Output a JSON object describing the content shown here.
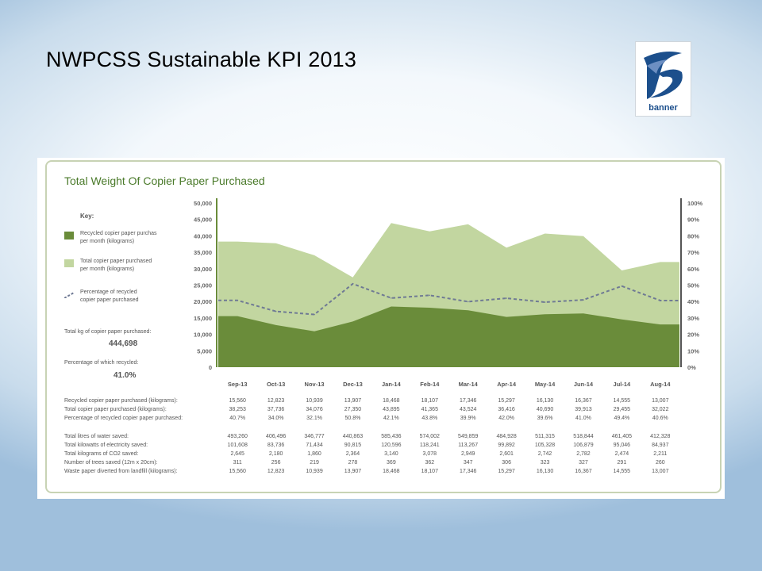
{
  "slide": {
    "title": "NWPCSS Sustainable KPI 2013"
  },
  "logo": {
    "text": "banner",
    "colors": {
      "primary": "#1c4f8c",
      "light": "#6d8fc2"
    }
  },
  "chart_data": {
    "type": "area",
    "title": "Total Weight Of Copier Paper Purchased",
    "categories": [
      "Sep-13",
      "Oct-13",
      "Nov-13",
      "Dec-13",
      "Jan-14",
      "Feb-14",
      "Mar-14",
      "Apr-14",
      "May-14",
      "Jun-14",
      "Jul-14",
      "Aug-14"
    ],
    "y_ticks_left": [
      "50,000",
      "45,000",
      "40,000",
      "35,000",
      "30,000",
      "25,000",
      "20,000",
      "15,000",
      "10,000",
      "5,000",
      "0"
    ],
    "y_ticks_right": [
      "100%",
      "90%",
      "80%",
      "70%",
      "60%",
      "50%",
      "40%",
      "30%",
      "20%",
      "10%",
      "0%"
    ],
    "ylim_left": [
      0,
      50000
    ],
    "ylim_right": [
      0,
      100
    ],
    "series": [
      {
        "name": "Recycled copier paper purchas per month (kilograms)",
        "type": "area",
        "color": "#6a8c3a",
        "values": [
          15560,
          12823,
          10939,
          13907,
          18468,
          18107,
          17346,
          15297,
          16130,
          16367,
          14555,
          13007
        ]
      },
      {
        "name": "Total copier paper purchased per month (kilograms)",
        "type": "area",
        "color": "#c2d6a0",
        "values": [
          38253,
          37736,
          34076,
          27350,
          43895,
          41365,
          43524,
          36416,
          40690,
          39913,
          29455,
          32022
        ]
      },
      {
        "name": "Percentage of recycled copier paper purchased",
        "type": "line",
        "axis": "right",
        "color": "#6f7a94",
        "values": [
          40.7,
          34.0,
          32.1,
          50.8,
          42.1,
          43.8,
          39.9,
          42.0,
          39.6,
          41.0,
          49.4,
          40.6
        ]
      }
    ],
    "key": {
      "title": "Key:",
      "items": [
        {
          "label": "Recycled copier paper purchas\nper month (kilograms)"
        },
        {
          "label": "Total copier paper purchased\nper month (kilograms)"
        },
        {
          "label": "Percentage of recycled\ncopier paper purchased"
        }
      ]
    },
    "summary": {
      "total_label": "Total kg of copier paper purchased:",
      "total_value": "444,698",
      "pct_label": "Percentage of which recycled:",
      "pct_value": "41.0%"
    },
    "table": {
      "group1": [
        {
          "label": "Recycled copier paper purchased (kilograms):",
          "values": [
            "15,560",
            "12,823",
            "10,939",
            "13,907",
            "18,468",
            "18,107",
            "17,346",
            "15,297",
            "16,130",
            "16,367",
            "14,555",
            "13,007"
          ]
        },
        {
          "label": "Total copier paper purchased (kilograms):",
          "values": [
            "38,253",
            "37,736",
            "34,076",
            "27,350",
            "43,895",
            "41,365",
            "43,524",
            "36,416",
            "40,690",
            "39,913",
            "29,455",
            "32,022"
          ]
        },
        {
          "label": "Percentage of recycled copier paper purchased:",
          "values": [
            "40.7%",
            "34.0%",
            "32.1%",
            "50.8%",
            "42.1%",
            "43.8%",
            "39.9%",
            "42.0%",
            "39.6%",
            "41.0%",
            "49.4%",
            "40.6%"
          ]
        }
      ],
      "group2": [
        {
          "label": "Total litres of water saved:",
          "values": [
            "493,260",
            "406,496",
            "346,777",
            "440,863",
            "585,436",
            "574,002",
            "549,859",
            "484,928",
            "511,315",
            "518,844",
            "461,405",
            "412,328"
          ]
        },
        {
          "label": "Total kilowatts of electricity saved:",
          "values": [
            "101,608",
            "83,736",
            "71,434",
            "90,815",
            "120,596",
            "118,241",
            "113,267",
            "99,892",
            "105,328",
            "106,879",
            "95,046",
            "84,937"
          ]
        },
        {
          "label": "Total kilograms of CO2 saved:",
          "values": [
            "2,645",
            "2,180",
            "1,860",
            "2,364",
            "3,140",
            "3,078",
            "2,949",
            "2,601",
            "2,742",
            "2,782",
            "2,474",
            "2,211"
          ]
        },
        {
          "label": "Number of trees saved (12m x 20cm):",
          "values": [
            "311",
            "256",
            "219",
            "278",
            "369",
            "362",
            "347",
            "306",
            "323",
            "327",
            "291",
            "260"
          ]
        },
        {
          "label": "Waste paper diverted from landfill (kilograms):",
          "values": [
            "15,560",
            "12,823",
            "10,939",
            "13,907",
            "18,468",
            "18,107",
            "17,346",
            "15,297",
            "16,130",
            "16,367",
            "14,555",
            "13,007"
          ]
        }
      ]
    }
  }
}
